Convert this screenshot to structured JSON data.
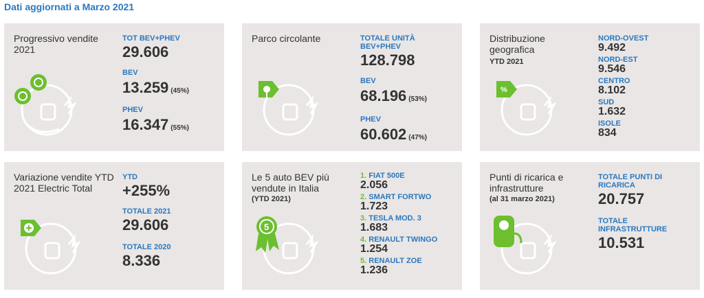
{
  "header": {
    "title": "Dati aggiornati a Marzo 2021"
  },
  "colors": {
    "accent_blue": "#2a78c0",
    "accent_green": "#6cbf2f",
    "card_bg": "#e9e6e5",
    "text_dark": "#333333"
  },
  "cards": {
    "progressivo": {
      "title": "Progressivo vendite 2021",
      "icon": "ev-charger-percent-icon",
      "metrics": [
        {
          "label": "TOT BEV+PHEV",
          "value": "29.606",
          "pct": ""
        },
        {
          "label": "BEV",
          "value": "13.259",
          "pct": "(45%)"
        },
        {
          "label": "PHEV",
          "value": "16.347",
          "pct": "(55%)"
        }
      ]
    },
    "parco": {
      "title": "Parco circolante",
      "icon": "ev-tag-pin-icon",
      "metrics": [
        {
          "label": "TOTALE UNITÀ",
          "label2": "BEV+PHEV",
          "value": "128.798",
          "pct": ""
        },
        {
          "label": "BEV",
          "value": "68.196",
          "pct": "(53%)"
        },
        {
          "label": "PHEV",
          "value": "60.602",
          "pct": "(47%)"
        }
      ]
    },
    "distribuzione": {
      "title": "Distribuzione geografica",
      "sub": "YTD 2021",
      "icon": "ev-tag-percent-icon",
      "metrics": [
        {
          "label": "NORD-OVEST",
          "value": "9.492"
        },
        {
          "label": "NORD-EST",
          "value": "9.546"
        },
        {
          "label": "CENTRO",
          "value": "8.102"
        },
        {
          "label": "SUD",
          "value": "1.632"
        },
        {
          "label": "ISOLE",
          "value": "834"
        }
      ]
    },
    "variazione": {
      "title": "Variazione vendite YTD 2021 Electric Total",
      "icon": "ev-tag-plus-icon",
      "metrics": [
        {
          "label": "YTD",
          "value": "+255%"
        },
        {
          "label": "TOTALE 2021",
          "value": "29.606"
        },
        {
          "label": "TOTALE 2020",
          "value": "8.336"
        }
      ]
    },
    "top5": {
      "title": "Le 5 auto BEV più vendute in Italia",
      "sub": "(YTD 2021)",
      "icon": "rank-badge-five-icon",
      "items": [
        {
          "rank": "1.",
          "label": "FIAT 500E",
          "value": "2.056"
        },
        {
          "rank": "2.",
          "label": "SMART FORTWO",
          "value": "1.723"
        },
        {
          "rank": "3.",
          "label": "TESLA MOD. 3",
          "value": "1.683"
        },
        {
          "rank": "4.",
          "label": "RENAULT TWINGO",
          "value": "1.254"
        },
        {
          "rank": "5.",
          "label": "RENAULT ZOE",
          "value": "1.236"
        }
      ]
    },
    "punti": {
      "title": "Punti di ricarica e infrastrutture",
      "sub": "(al 31 marzo 2021)",
      "icon": "charging-station-icon",
      "metrics": [
        {
          "label": "TOTALE PUNTI DI",
          "label2": "RICARICA",
          "value": "20.757"
        },
        {
          "label": "TOTALE",
          "label2": "INFRASTRUTTURE",
          "value": "10.531"
        }
      ]
    }
  }
}
